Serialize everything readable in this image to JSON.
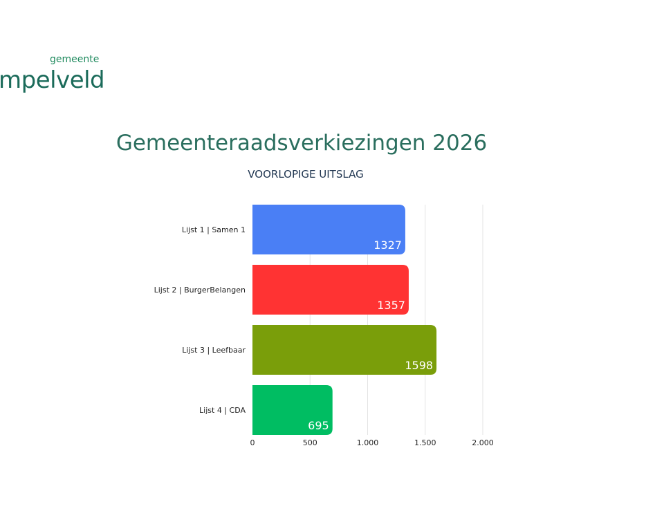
{
  "logo": {
    "small": "gemeente",
    "big": "mpelveld"
  },
  "chart_data": {
    "type": "bar",
    "orientation": "horizontal",
    "title": "Gemeenteraadsverkiezingen 2026",
    "subtitle": "VOORLOPIGE UITSLAG",
    "categories": [
      "Lijst 1 | Samen 1",
      "Lijst 2 | BurgerBelangen",
      "Lijst 3 | Leefbaar",
      "Lijst 4 | CDA"
    ],
    "values": [
      1327,
      1357,
      1598,
      695
    ],
    "value_labels": [
      "1327",
      "1357",
      "1598",
      "695"
    ],
    "colors": [
      "#4a7ff5",
      "#ff3333",
      "#7a9e0a",
      "#00bd62"
    ],
    "xlim": [
      0,
      2000
    ],
    "xticks": [
      0,
      500,
      1000,
      1500,
      2000
    ],
    "xtick_labels": [
      "0",
      "500",
      "1.000",
      "1.500",
      "2.000"
    ],
    "grid": true,
    "legend": "none"
  }
}
